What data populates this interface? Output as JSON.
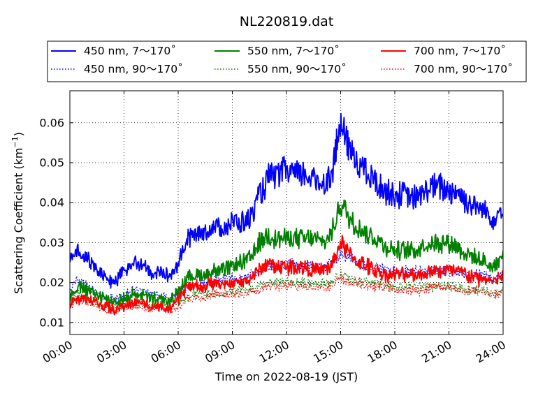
{
  "chart_data": {
    "type": "line",
    "title": "NL220819.dat",
    "xlabel": "Time on 2022-08-19 (JST)",
    "ylabel": "Scattering Coefficient (km",
    "ylabel_superscript": "−1",
    "ylabel_suffix": ")",
    "xlim": [
      0,
      24
    ],
    "ylim": [
      0.007,
      0.068
    ],
    "x_ticks": [
      0,
      3,
      6,
      9,
      12,
      15,
      18,
      21,
      24
    ],
    "x_tick_labels": [
      "00:00",
      "03:00",
      "06:00",
      "09:00",
      "12:00",
      "15:00",
      "18:00",
      "21:00",
      "24:00"
    ],
    "y_ticks": [
      0.01,
      0.02,
      0.03,
      0.04,
      0.05,
      0.06
    ],
    "y_tick_labels": [
      "0.01",
      "0.02",
      "0.03",
      "0.04",
      "0.05",
      "0.06"
    ],
    "grid": true,
    "legend_position": "top (above plot)",
    "x": [
      0,
      0.5,
      1,
      1.5,
      2,
      2.5,
      3,
      3.5,
      4,
      4.5,
      5,
      5.5,
      6,
      6.5,
      7,
      7.5,
      8,
      8.5,
      9,
      9.5,
      10,
      10.5,
      11,
      11.5,
      12,
      12.5,
      13,
      13.5,
      14,
      14.5,
      15,
      15.5,
      16,
      16.5,
      17,
      17.5,
      18,
      18.5,
      19,
      19.5,
      20,
      20.5,
      21,
      21.5,
      22,
      22.5,
      23,
      23.5,
      24
    ],
    "series": [
      {
        "name": "450 nm, 7～170˚",
        "color": "#0000ff",
        "style": "solid",
        "values": [
          0.025,
          0.028,
          0.026,
          0.023,
          0.021,
          0.02,
          0.023,
          0.024,
          0.025,
          0.022,
          0.023,
          0.021,
          0.025,
          0.031,
          0.032,
          0.033,
          0.034,
          0.034,
          0.035,
          0.035,
          0.036,
          0.042,
          0.046,
          0.047,
          0.048,
          0.047,
          0.047,
          0.046,
          0.045,
          0.047,
          0.06,
          0.053,
          0.05,
          0.047,
          0.045,
          0.043,
          0.042,
          0.042,
          0.041,
          0.042,
          0.044,
          0.044,
          0.043,
          0.043,
          0.04,
          0.039,
          0.038,
          0.036,
          0.039
        ]
      },
      {
        "name": "450 nm, 90～170˚",
        "color": "#0000ff",
        "style": "dotted",
        "values": [
          0.018,
          0.021,
          0.019,
          0.017,
          0.016,
          0.016,
          0.017,
          0.018,
          0.018,
          0.017,
          0.017,
          0.016,
          0.017,
          0.019,
          0.02,
          0.02,
          0.021,
          0.021,
          0.021,
          0.021,
          0.022,
          0.023,
          0.024,
          0.024,
          0.025,
          0.024,
          0.024,
          0.024,
          0.024,
          0.025,
          0.027,
          0.026,
          0.025,
          0.024,
          0.024,
          0.023,
          0.023,
          0.023,
          0.023,
          0.023,
          0.023,
          0.023,
          0.023,
          0.023,
          0.022,
          0.022,
          0.022,
          0.021,
          0.022
        ]
      },
      {
        "name": "550 nm, 7～170˚",
        "color": "#008000",
        "style": "solid",
        "values": [
          0.017,
          0.019,
          0.018,
          0.017,
          0.016,
          0.015,
          0.016,
          0.017,
          0.017,
          0.016,
          0.016,
          0.015,
          0.018,
          0.021,
          0.022,
          0.022,
          0.023,
          0.023,
          0.024,
          0.025,
          0.026,
          0.03,
          0.032,
          0.031,
          0.031,
          0.031,
          0.031,
          0.031,
          0.03,
          0.032,
          0.04,
          0.036,
          0.034,
          0.032,
          0.031,
          0.029,
          0.028,
          0.028,
          0.028,
          0.029,
          0.03,
          0.03,
          0.03,
          0.029,
          0.027,
          0.026,
          0.025,
          0.024,
          0.027
        ]
      },
      {
        "name": "550 nm, 90～170˚",
        "color": "#008000",
        "style": "dotted",
        "values": [
          0.015,
          0.017,
          0.016,
          0.015,
          0.014,
          0.014,
          0.015,
          0.015,
          0.015,
          0.014,
          0.015,
          0.014,
          0.015,
          0.016,
          0.017,
          0.017,
          0.017,
          0.017,
          0.018,
          0.018,
          0.018,
          0.019,
          0.02,
          0.02,
          0.02,
          0.02,
          0.02,
          0.02,
          0.02,
          0.02,
          0.022,
          0.021,
          0.02,
          0.02,
          0.02,
          0.019,
          0.019,
          0.019,
          0.019,
          0.019,
          0.019,
          0.019,
          0.019,
          0.019,
          0.018,
          0.018,
          0.018,
          0.017,
          0.018
        ]
      },
      {
        "name": "700 nm, 7～170˚",
        "color": "#ff0000",
        "style": "solid",
        "values": [
          0.015,
          0.016,
          0.016,
          0.015,
          0.014,
          0.013,
          0.014,
          0.015,
          0.015,
          0.014,
          0.014,
          0.013,
          0.016,
          0.019,
          0.019,
          0.019,
          0.02,
          0.019,
          0.02,
          0.02,
          0.021,
          0.023,
          0.025,
          0.024,
          0.024,
          0.024,
          0.024,
          0.023,
          0.023,
          0.024,
          0.03,
          0.027,
          0.025,
          0.024,
          0.023,
          0.022,
          0.022,
          0.022,
          0.022,
          0.022,
          0.023,
          0.023,
          0.023,
          0.023,
          0.022,
          0.021,
          0.021,
          0.02,
          0.022
        ]
      },
      {
        "name": "700 nm, 90～170˚",
        "color": "#ff0000",
        "style": "dotted",
        "values": [
          0.014,
          0.016,
          0.015,
          0.014,
          0.013,
          0.013,
          0.014,
          0.014,
          0.014,
          0.013,
          0.014,
          0.013,
          0.014,
          0.016,
          0.016,
          0.016,
          0.017,
          0.017,
          0.017,
          0.017,
          0.018,
          0.018,
          0.019,
          0.019,
          0.019,
          0.019,
          0.019,
          0.019,
          0.019,
          0.019,
          0.021,
          0.02,
          0.02,
          0.019,
          0.019,
          0.019,
          0.018,
          0.018,
          0.018,
          0.018,
          0.019,
          0.019,
          0.019,
          0.018,
          0.018,
          0.018,
          0.018,
          0.017,
          0.018
        ]
      }
    ]
  }
}
